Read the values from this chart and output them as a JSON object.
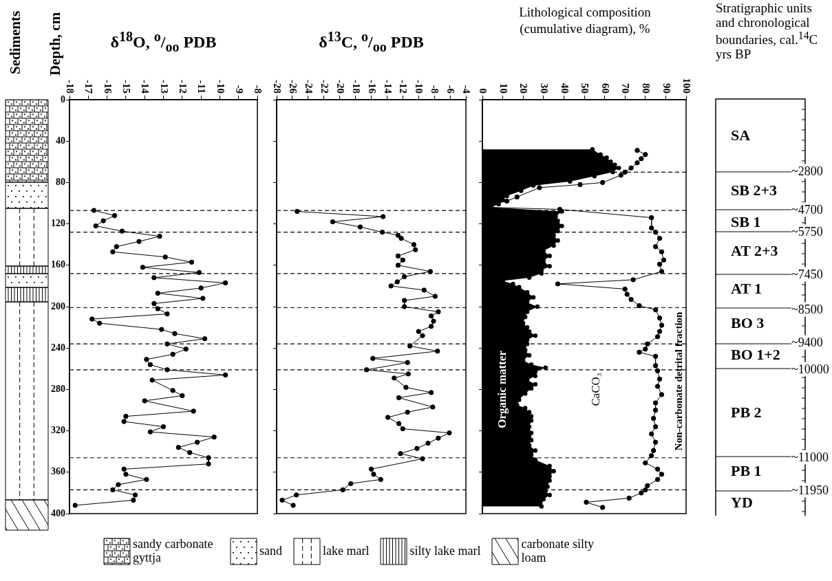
{
  "chart_data": [
    {
      "type": "other",
      "title": "Sediments",
      "annotations": [
        "sandy carbonate gyttja",
        "sand",
        "lake marl",
        "silty lake marl",
        "carbonate silty loam"
      ]
    },
    {
      "type": "line",
      "title": "δ$^{18}$O, $^{o}$/$_{oo}$ PDB",
      "ylabel": "Depth, cm",
      "orientation": "horizontal",
      "marker": "circle",
      "line_style": "solid",
      "xlim": [
        -18,
        -8
      ],
      "xticks": [
        -18,
        -17,
        -16,
        -15,
        -14,
        -13,
        -12,
        -11,
        -10,
        -9,
        -8
      ],
      "ylim": [
        400,
        0
      ],
      "yticks": [
        0,
        40,
        80,
        120,
        160,
        200,
        240,
        280,
        320,
        360,
        400
      ],
      "series": [
        {
          "color": "#000000",
          "x": [
            107,
            112,
            117,
            122,
            127,
            132,
            137,
            142,
            147,
            152,
            157,
            162,
            167,
            172,
            177,
            182,
            187,
            192,
            197,
            202,
            207,
            212,
            216,
            222,
            226,
            231,
            236,
            241,
            246,
            251,
            256,
            261,
            266,
            271,
            281,
            286,
            291,
            301,
            306,
            311,
            316,
            321,
            326,
            331,
            336,
            341,
            346,
            352,
            357,
            362,
            367,
            372,
            377,
            382,
            387,
            392
          ],
          "values": [
            -16.7,
            -15.6,
            -16.2,
            -16.6,
            -15.2,
            -13.2,
            -14.3,
            -15.5,
            -15.7,
            -12.9,
            -11.5,
            -14.1,
            -11.1,
            -13.5,
            -9.7,
            -11.0,
            -13.3,
            -10.9,
            -13.5,
            -13.3,
            -12.8,
            -16.8,
            -16.4,
            -13.1,
            -12.4,
            -10.8,
            -12.8,
            -11.8,
            -12.5,
            -13.9,
            -13.7,
            -12.8,
            -9.7,
            -13.6,
            -12.5,
            -12.0,
            -14.0,
            -11.4,
            -15.0,
            -15.1,
            -13.0,
            -13.7,
            -10.3,
            -11.2,
            -12.2,
            -11.6,
            -10.6,
            -10.6,
            -15.1,
            -15.0,
            -13.9,
            -15.4,
            -15.7,
            -14.5,
            -14.6,
            -17.7
          ]
        }
      ],
      "ref_lines": [
        {
          "axis": "y",
          "value": 107,
          "line_style": "dashed"
        },
        {
          "axis": "y",
          "value": 128,
          "line_style": "dashed"
        },
        {
          "axis": "y",
          "value": 168,
          "line_style": "dashed"
        },
        {
          "axis": "y",
          "value": 201,
          "line_style": "dashed"
        },
        {
          "axis": "y",
          "value": 236,
          "line_style": "dashed"
        },
        {
          "axis": "y",
          "value": 261,
          "line_style": "dashed"
        },
        {
          "axis": "y",
          "value": 346,
          "line_style": "dashed"
        },
        {
          "axis": "y",
          "value": 377,
          "line_style": "dashed"
        }
      ]
    },
    {
      "type": "line",
      "title": "δ$^{13}$C, $^{o}$/$_{oo}$ PDB",
      "orientation": "horizontal",
      "marker": "circle",
      "line_style": "solid",
      "tick_labels": "x",
      "xlim": [
        -28,
        -4
      ],
      "xticks": [
        -28,
        -26,
        -24,
        -22,
        -20,
        -18,
        -16,
        -14,
        -12,
        -10,
        -8,
        -6,
        -4
      ],
      "ylim": [
        400,
        0
      ],
      "yticks": [
        0,
        40,
        80,
        120,
        160,
        200,
        240,
        280,
        320,
        360,
        400
      ],
      "series": [
        {
          "color": "#000000",
          "x": [
            108,
            113,
            118,
            123,
            128,
            131,
            134,
            140,
            145,
            151,
            155,
            160,
            166,
            171,
            176,
            180,
            184,
            190,
            194,
            200,
            205,
            209,
            214,
            219,
            224,
            228,
            238,
            243,
            250,
            254,
            261,
            265,
            269,
            278,
            283,
            288,
            297,
            302,
            307,
            313,
            318,
            322,
            327,
            332,
            337,
            342,
            347,
            357,
            362,
            367,
            371,
            377,
            382,
            387,
            392
          ],
          "values": [
            -25.4,
            -14.5,
            -20.9,
            -17.4,
            -14.6,
            -12.6,
            -12.2,
            -10.6,
            -10.4,
            -12.6,
            -12.0,
            -12.6,
            -8.5,
            -11.8,
            -12.7,
            -13.5,
            -9.3,
            -7.9,
            -11.8,
            -11.8,
            -7.5,
            -8.4,
            -8.1,
            -8.4,
            -10.0,
            -9.5,
            -11.1,
            -7.6,
            -15.8,
            -11.4,
            -16.6,
            -11.3,
            -13.1,
            -11.6,
            -8.4,
            -12.5,
            -8.2,
            -11.4,
            -13.9,
            -12.5,
            -12.0,
            -6.1,
            -7.5,
            -8.8,
            -10.2,
            -12.3,
            -9.5,
            -16.0,
            -15.7,
            -14.8,
            -18.6,
            -19.6,
            -25.5,
            -27.3,
            -25.9
          ]
        }
      ],
      "ref_lines": [
        {
          "axis": "y",
          "value": 107,
          "line_style": "dashed"
        },
        {
          "axis": "y",
          "value": 128,
          "line_style": "dashed"
        },
        {
          "axis": "y",
          "value": 168,
          "line_style": "dashed"
        },
        {
          "axis": "y",
          "value": 201,
          "line_style": "dashed"
        },
        {
          "axis": "y",
          "value": 236,
          "line_style": "dashed"
        },
        {
          "axis": "y",
          "value": 261,
          "line_style": "dashed"
        },
        {
          "axis": "y",
          "value": 346,
          "line_style": "dashed"
        },
        {
          "axis": "y",
          "value": 377,
          "line_style": "dashed"
        }
      ]
    },
    {
      "type": "area",
      "title": "Lithological composition (cumulative diagram), %",
      "orientation": "horizontal",
      "marker": "circle",
      "line_style": "solid",
      "tick_labels": "x",
      "xlim": [
        0,
        100
      ],
      "xticks": [
        0,
        10,
        20,
        30,
        40,
        50,
        60,
        70,
        80,
        90,
        100
      ],
      "ylim": [
        400,
        0
      ],
      "yticks": [
        0,
        40,
        80,
        120,
        160,
        200,
        240,
        280,
        320,
        360,
        400
      ],
      "annotations": [
        "Organic matter",
        "CaCO₃",
        "Non-carbonate detrital fraction"
      ],
      "series": [
        {
          "type": "area",
          "color": "#000000",
          "x": [
            48,
            53,
            56,
            60,
            63,
            66,
            70,
            74,
            79,
            83,
            88,
            93,
            97,
            101,
            104,
            108,
            113,
            117,
            122,
            127,
            131,
            136,
            141,
            146,
            151,
            156,
            161,
            165,
            168,
            172,
            175,
            178,
            181,
            186,
            191,
            196,
            200,
            205,
            210,
            216,
            220,
            224,
            228,
            232,
            236,
            242,
            247,
            252,
            256,
            259,
            263,
            267,
            271,
            275,
            279,
            284,
            290,
            295,
            298,
            302,
            306,
            310,
            316,
            322,
            329,
            334,
            339,
            343,
            348,
            354,
            359,
            364,
            368,
            374,
            378,
            382,
            386,
            393
          ],
          "values": [
            54,
            58,
            61,
            63,
            65,
            67,
            64,
            55,
            43,
            25,
            19,
            12,
            10,
            8,
            4,
            39,
            36,
            37,
            39,
            37,
            35,
            37,
            35,
            30,
            33,
            30,
            33,
            29,
            29,
            23,
            10,
            15,
            18,
            22,
            25,
            22,
            27,
            22,
            21,
            20,
            22,
            23,
            26,
            22,
            22,
            21,
            23,
            20,
            24,
            31,
            26,
            26,
            22,
            26,
            24,
            21,
            18,
            17,
            21,
            23,
            24,
            24,
            23,
            24,
            24,
            23,
            26,
            24,
            26,
            33,
            35,
            33,
            33,
            32,
            31,
            33,
            30,
            29
          ]
        },
        {
          "type": "line",
          "color": "#000000",
          "x": [
            49,
            53,
            57,
            61,
            66,
            70,
            73,
            80,
            82,
            85,
            94,
            98,
            101,
            104,
            106,
            114,
            124,
            128,
            134,
            142,
            147,
            155,
            159,
            166,
            174,
            178,
            183,
            188,
            193,
            199,
            203,
            211,
            218,
            224,
            229,
            236,
            241,
            244,
            248,
            257,
            262,
            270,
            277,
            285,
            293,
            300,
            308,
            316,
            323,
            331,
            339,
            344,
            351,
            357,
            362,
            367,
            373,
            377,
            380,
            385,
            389,
            394
          ],
          "values": [
            76,
            80,
            78,
            76,
            73,
            70,
            68,
            59,
            48,
            28,
            17,
            12,
            5,
            4,
            38,
            83,
            83,
            85,
            87,
            85,
            88,
            89,
            87,
            88,
            74,
            37,
            70,
            71,
            73,
            77,
            85,
            87,
            88,
            87,
            86,
            81,
            80,
            77,
            85,
            85,
            86,
            87,
            86,
            88,
            85,
            85,
            84,
            85,
            83,
            85,
            84,
            83,
            80,
            86,
            88,
            86,
            81,
            80,
            78,
            72,
            51,
            59
          ]
        }
      ],
      "ref_lines": [
        {
          "axis": "y",
          "value": 70,
          "line_style": "dashed"
        },
        {
          "axis": "y",
          "value": 107,
          "line_style": "dashed"
        },
        {
          "axis": "y",
          "value": 128,
          "line_style": "dashed"
        },
        {
          "axis": "y",
          "value": 168,
          "line_style": "dashed"
        },
        {
          "axis": "y",
          "value": 201,
          "line_style": "dashed"
        },
        {
          "axis": "y",
          "value": 236,
          "line_style": "dashed"
        },
        {
          "axis": "y",
          "value": 261,
          "line_style": "dashed"
        },
        {
          "axis": "y",
          "value": 346,
          "line_style": "dashed"
        },
        {
          "axis": "y",
          "value": 377,
          "line_style": "dashed"
        }
      ]
    },
    {
      "type": "other",
      "title": "Stratigraphic units and chronological boundaries, cal.$^{14}$C yrs BP",
      "annotations": [
        "SA",
        "SB 2+3",
        "SB 1",
        "AT 2+3",
        "AT 1",
        "BO 3",
        "BO 1+2",
        "PB 2",
        "PB 1",
        "YD",
        "~2800",
        "~4700",
        "~5750",
        "~7450",
        "~8500",
        "~9400",
        "~10000",
        "~11000",
        "~11950"
      ]
    }
  ]
}
